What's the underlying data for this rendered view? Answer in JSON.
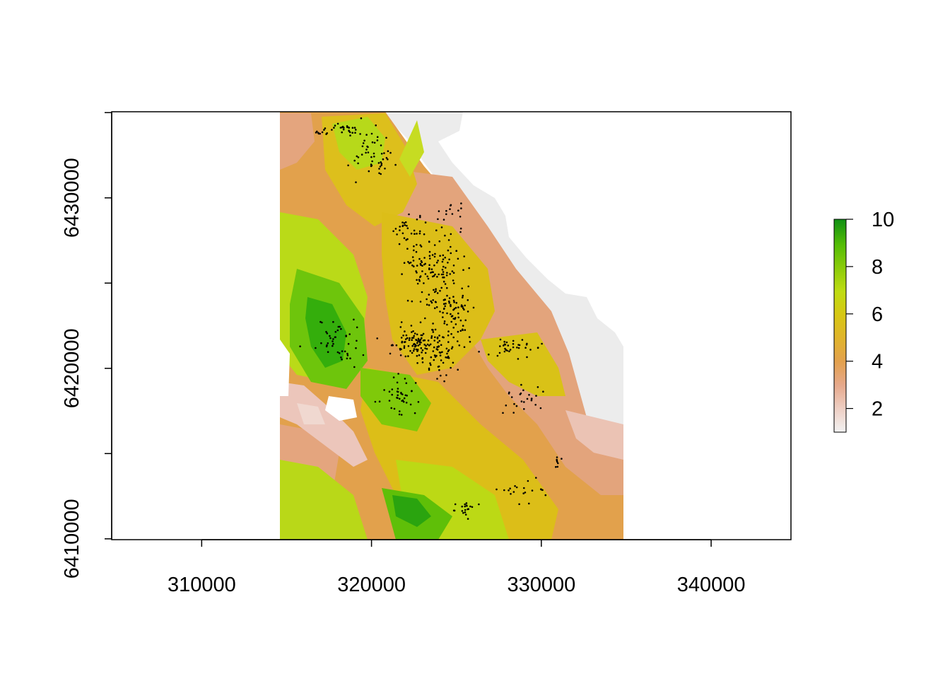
{
  "chart_data": {
    "type": "heatmap",
    "title": "",
    "xlabel": "",
    "ylabel": "",
    "xlim": [
      304700,
      344700
    ],
    "ylim": [
      6409950,
      6435050
    ],
    "x_ticks": [
      310000,
      320000,
      330000,
      340000
    ],
    "x_tick_labels": [
      "310000",
      "320000",
      "330000",
      "340000"
    ],
    "y_ticks": [
      6410000,
      6415000,
      6420000,
      6425000,
      6430000,
      6435000
    ],
    "y_tick_labels": [
      "6410000",
      "",
      "6420000",
      "",
      "6430000",
      ""
    ],
    "raster_extent": {
      "xmin": 314650,
      "xmax": 334850,
      "ymin": 6410000,
      "ymax": 6435000
    },
    "legend": {
      "placement": "right",
      "range": [
        1,
        10
      ],
      "ticks": [
        2,
        4,
        6,
        8,
        10
      ],
      "tick_labels": [
        "2",
        "4",
        "6",
        "8",
        "10"
      ],
      "colors": [
        "#f2f2f2",
        "#eecfc4",
        "#e6a98c",
        "#e3a14e",
        "#e0b42c",
        "#d7c713",
        "#bfdc12",
        "#8ccc0a",
        "#54bd05",
        "#2aa70a",
        "#0f8f14"
      ]
    },
    "grid": false,
    "points_color": "#000000"
  }
}
